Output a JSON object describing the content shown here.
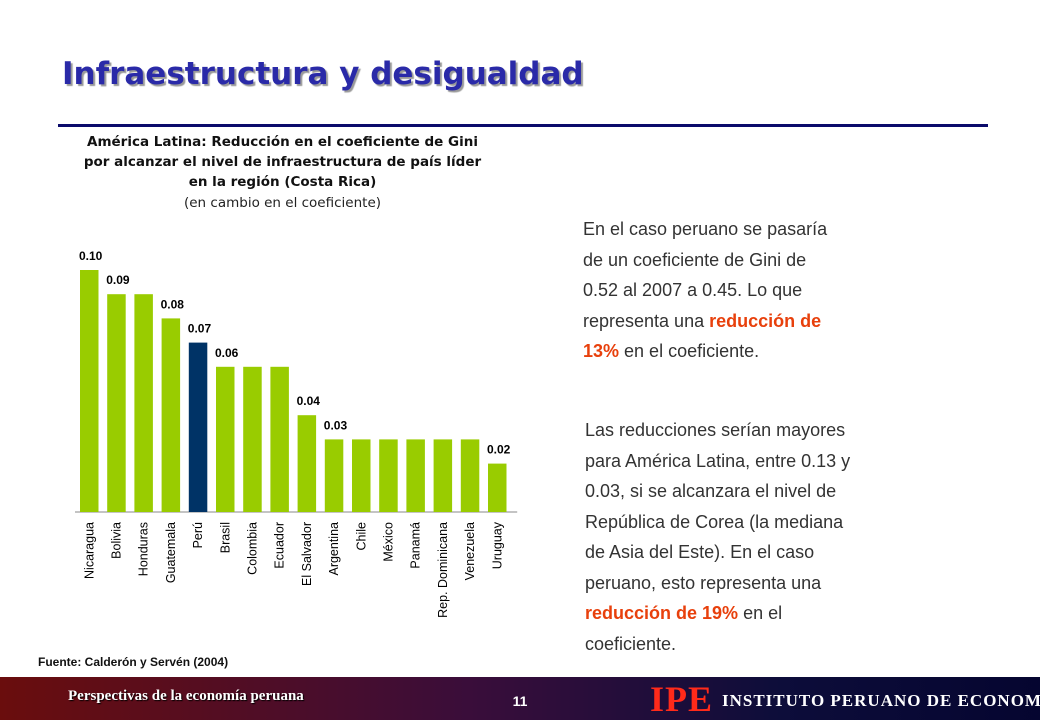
{
  "slide": {
    "title": "Infraestructura y desigualdad",
    "source": "Fuente: Calderón y Servén (2004)"
  },
  "paragraph1": {
    "lines": [
      {
        "plain": "En el caso peruano se pasaría",
        "hl": ""
      },
      {
        "plain": "de un coeficiente de Gini de",
        "hl": ""
      },
      {
        "plain": "0.52 al 2007 a 0.45. Lo que",
        "hl": ""
      },
      {
        "plain": "representa una ",
        "hl": "reducción de"
      },
      {
        "plain": " en el coeficiente.",
        "hl": "13%",
        "hl_first": true
      }
    ]
  },
  "paragraph2": {
    "lines": [
      {
        "plain": "Las reducciones serían mayores",
        "hl": ""
      },
      {
        "plain": "para América Latina, entre 0.13 y",
        "hl": ""
      },
      {
        "plain": "0.03, si se alcanzara el nivel de",
        "hl": ""
      },
      {
        "plain": "República de Corea (la mediana",
        "hl": ""
      },
      {
        "plain": "de Asia del Este). En el caso",
        "hl": ""
      },
      {
        "plain": "peruano, esto representa una",
        "hl": ""
      },
      {
        "plain": " en el",
        "hl": "reducción de 19%",
        "hl_first": true
      },
      {
        "plain": "coeficiente.",
        "hl": ""
      }
    ]
  },
  "footer": {
    "left_text": "Perspectivas de la economía peruana",
    "page_number": "11",
    "logo": "IPE",
    "institute": "INSTITUTO PERUANO DE ECONOMÍA"
  },
  "chart_data": {
    "type": "bar",
    "title": "América Latina: Reducción en el coeficiente de Gini por alcanzar el nivel de infraestructura de país líder en la región (Costa Rica)",
    "title_lines": [
      "América Latina: Reducción en el coeficiente de Gini",
      "por alcanzar el nivel de infraestructura de país líder",
      "en la región (Costa Rica)"
    ],
    "subtitle": "(en cambio en el coeficiente)",
    "categories": [
      "Nicaragua",
      "Bolivia",
      "Honduras",
      "Guatemala",
      "Perú",
      "Brasil",
      "Colombia",
      "Ecuador",
      "El Salvador",
      "Argentina",
      "Chile",
      "México",
      "Panamá",
      "Rep. Dominicana",
      "Venezuela",
      "Uruguay"
    ],
    "values": [
      0.1,
      0.09,
      0.09,
      0.08,
      0.07,
      0.06,
      0.06,
      0.06,
      0.04,
      0.03,
      0.03,
      0.03,
      0.03,
      0.03,
      0.03,
      0.02
    ],
    "value_labels": [
      "0.10",
      "0.09",
      "",
      "0.08",
      "0.07",
      "0.06",
      "",
      "",
      "0.04",
      "0.03",
      "",
      "",
      "",
      "",
      "",
      "0.02"
    ],
    "highlight_category": "Perú",
    "ylim": [
      0,
      0.1
    ],
    "grid": false,
    "colors": {
      "default": "#99cc00",
      "highlight": "#003366"
    }
  }
}
